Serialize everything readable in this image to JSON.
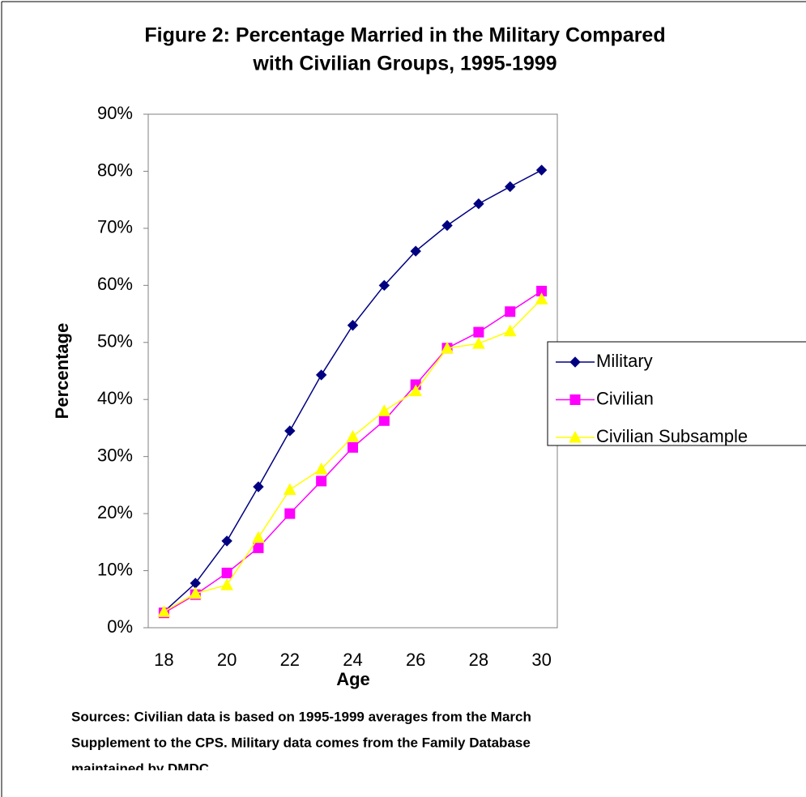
{
  "chart_data": {
    "type": "line",
    "title": [
      "Figure 2: Percentage Married in the Military Compared",
      "with Civilian Groups, 1995-1999"
    ],
    "x_label": "Age",
    "y_label": "Percentage",
    "categories": [
      "18",
      null,
      "20",
      null,
      "22",
      null,
      "24",
      null,
      "26",
      null,
      "28",
      null,
      "30"
    ],
    "series": [
      {
        "name": "Military",
        "color": "#000080",
        "marker": "diamond",
        "values": [
          2.8,
          7.8,
          15.2,
          24.7,
          34.5,
          44.3,
          53,
          60,
          66,
          70.5,
          74.3,
          77.3,
          80.2
        ]
      },
      {
        "name": "Civilian",
        "color": "#ff00ff",
        "marker": "square",
        "values": [
          2.6,
          5.8,
          9.6,
          14,
          20,
          25.7,
          31.6,
          36.3,
          42.6,
          49,
          51.8,
          55.4,
          59
        ]
      },
      {
        "name": "Civilian Subsample",
        "color": "#ffff00",
        "marker": "triangle",
        "values": [
          2.8,
          6,
          7.5,
          15.8,
          24.2,
          27.8,
          33.5,
          38,
          41.5,
          49,
          49.8,
          52,
          57.6
        ]
      }
    ],
    "ylim": [
      0,
      90
    ],
    "yticks": [
      {
        "value": 0,
        "label": "0%"
      },
      {
        "value": 10,
        "label": "10%"
      },
      {
        "value": 20,
        "label": "20%"
      },
      {
        "value": 30,
        "label": "30%"
      },
      {
        "value": 40,
        "label": "40%"
      },
      {
        "value": 50,
        "label": "50%"
      },
      {
        "value": 60,
        "label": "60%"
      },
      {
        "value": 70,
        "label": "70%"
      },
      {
        "value": 80,
        "label": "80%"
      },
      {
        "value": 90,
        "label": "90%"
      }
    ],
    "legend": "right",
    "note": [
      "Sources: Civilian data is based on 1995-1999 averages from the March",
      "Supplement to the CPS.  Military data comes from the Family Database",
      "maintained by DMDC."
    ]
  }
}
